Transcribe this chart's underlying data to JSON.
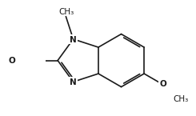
{
  "background": "#ffffff",
  "line_color": "#1a1a1a",
  "line_width": 1.2,
  "font_size": 7.5,
  "text_color": "#1a1a1a",
  "labels": {
    "N1": "N",
    "N3": "N",
    "CH3_top": "CH₃",
    "CHO": "O",
    "OCH3_label": "O",
    "CH3_bottom": "CH₃"
  }
}
